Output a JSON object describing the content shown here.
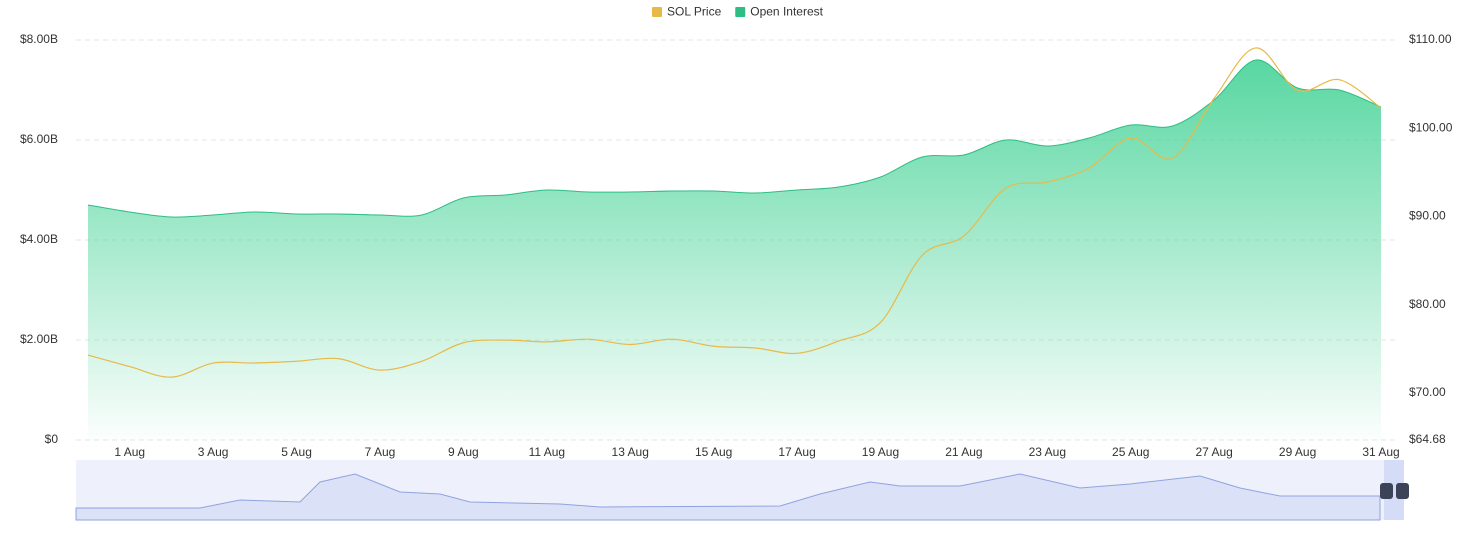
{
  "chart_data": {
    "type": "line",
    "categories": [
      null,
      "1 Aug",
      null,
      "3 Aug",
      null,
      "5 Aug",
      null,
      "7 Aug",
      null,
      "9 Aug",
      null,
      "11 Aug",
      null,
      "13 Aug",
      null,
      "15 Aug",
      null,
      "17 Aug",
      null,
      "19 Aug",
      null,
      "21 Aug",
      null,
      "23 Aug",
      null,
      "25 Aug",
      null,
      "27 Aug",
      null,
      "29 Aug",
      null,
      "31 Aug"
    ],
    "series": [
      {
        "name": "SOL Price",
        "color": "#e8b949",
        "axis": "y2",
        "values": [
          74.3,
          73.0,
          71.8,
          73.4,
          73.4,
          73.6,
          73.9,
          72.6,
          73.6,
          75.7,
          76.0,
          75.8,
          76.1,
          75.5,
          76.1,
          75.3,
          75.1,
          74.5,
          75.9,
          78.0,
          85.6,
          87.8,
          93.2,
          93.9,
          95.5,
          98.9,
          96.6,
          103.4,
          109.1,
          104.3,
          105.5,
          102.3
        ]
      },
      {
        "name": "Open Interest",
        "color": "#2dbd85",
        "values": [
          4.7,
          4.56,
          4.46,
          4.5,
          4.56,
          4.52,
          4.52,
          4.5,
          4.5,
          4.84,
          4.9,
          5.0,
          4.96,
          4.96,
          4.98,
          4.98,
          4.94,
          5.0,
          5.06,
          5.26,
          5.66,
          5.7,
          6.0,
          5.88,
          6.04,
          6.3,
          6.28,
          6.8,
          7.6,
          7.04,
          7.0,
          6.66
        ]
      }
    ],
    "ylim": [
      0,
      8
    ],
    "yticks": [
      {
        "value": 0,
        "label": "$0"
      },
      {
        "value": 2,
        "label": "$2.00B"
      },
      {
        "value": 4,
        "label": "$4.00B"
      },
      {
        "value": 6,
        "label": "$6.00B"
      },
      {
        "value": 8,
        "label": "$8.00B"
      }
    ],
    "y2lim": [
      64.68,
      110
    ],
    "y2ticks": [
      {
        "value": 64.68,
        "label": "$64.68"
      },
      {
        "value": 70,
        "label": "$70.00"
      },
      {
        "value": 80,
        "label": "$80.00"
      },
      {
        "value": 90,
        "label": "$90.00"
      },
      {
        "value": 100,
        "label": "$100.00"
      },
      {
        "value": 110,
        "label": "$110.00"
      }
    ],
    "grid": true,
    "legend": "top"
  }
}
